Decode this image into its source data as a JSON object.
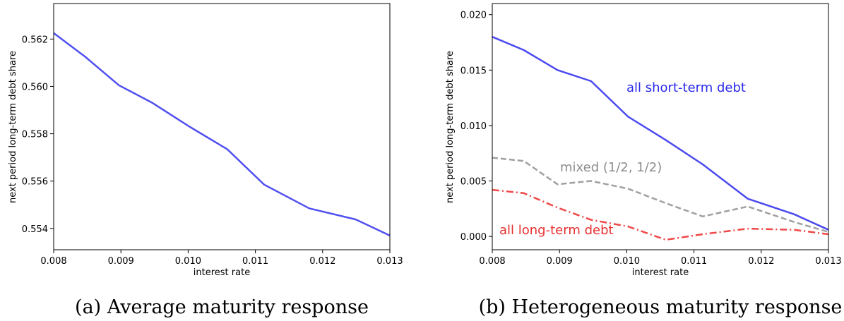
{
  "chart_data": [
    {
      "type": "line",
      "caption": "(a) Average maturity response",
      "xlabel": "interest rate",
      "ylabel": "next period long-term debt share",
      "xlim": [
        0.008,
        0.013
      ],
      "ylim": [
        0.5531,
        0.5635
      ],
      "xticks": [
        "0.008",
        "0.009",
        "0.010",
        "0.011",
        "0.012",
        "0.013"
      ],
      "yticks": [
        "0.554",
        "0.556",
        "0.558",
        "0.560",
        "0.562"
      ],
      "grid": false,
      "series": [
        {
          "color": "#5050f0",
          "dash": "solid",
          "x": [
            0.008,
            0.00847,
            0.00897,
            0.00947,
            0.01002,
            0.01058,
            0.01113,
            0.0118,
            0.01249,
            0.013
          ],
          "y": [
            0.56225,
            0.56125,
            0.56005,
            0.5593,
            0.5583,
            0.55735,
            0.55585,
            0.55485,
            0.55438,
            0.5537
          ]
        }
      ]
    },
    {
      "type": "line",
      "caption": "(b) Heterogeneous maturity response",
      "xlabel": "interest rate",
      "ylabel": "next period long-term debt share",
      "xlim": [
        0.008,
        0.013
      ],
      "ylim": [
        -0.0012,
        0.021
      ],
      "xticks": [
        "0.008",
        "0.009",
        "0.010",
        "0.011",
        "0.012",
        "0.013"
      ],
      "yticks": [
        "0.000",
        "0.005",
        "0.010",
        "0.015",
        "0.020"
      ],
      "grid": false,
      "series": [
        {
          "name": "all short-term debt",
          "color": "#4a4af0",
          "dash": "solid",
          "x": [
            0.008,
            0.00847,
            0.00897,
            0.00947,
            0.01002,
            0.01058,
            0.01113,
            0.0118,
            0.01249,
            0.013
          ],
          "y": [
            0.018,
            0.0168,
            0.015,
            0.014,
            0.0108,
            0.0087,
            0.0065,
            0.0034,
            0.002,
            0.0006
          ]
        },
        {
          "name": "mixed (1/2, 1/2)",
          "color": "#a0a0a0",
          "dash": "dashed",
          "x": [
            0.008,
            0.00847,
            0.00897,
            0.00947,
            0.01002,
            0.01058,
            0.01113,
            0.0118,
            0.01249,
            0.013
          ],
          "y": [
            0.0071,
            0.0068,
            0.0047,
            0.005,
            0.0043,
            0.003,
            0.0018,
            0.0027,
            0.0013,
            0.0004
          ]
        },
        {
          "name": "all long-term debt",
          "color": "#f04848",
          "dash": "dashdot",
          "x": [
            0.008,
            0.00847,
            0.00897,
            0.00947,
            0.01002,
            0.01058,
            0.01113,
            0.0118,
            0.01249,
            0.013
          ],
          "y": [
            0.0042,
            0.0039,
            0.0026,
            0.0015,
            0.0009,
            -0.0003,
            0.0002,
            0.0007,
            0.0006,
            0.0002
          ]
        }
      ]
    }
  ]
}
